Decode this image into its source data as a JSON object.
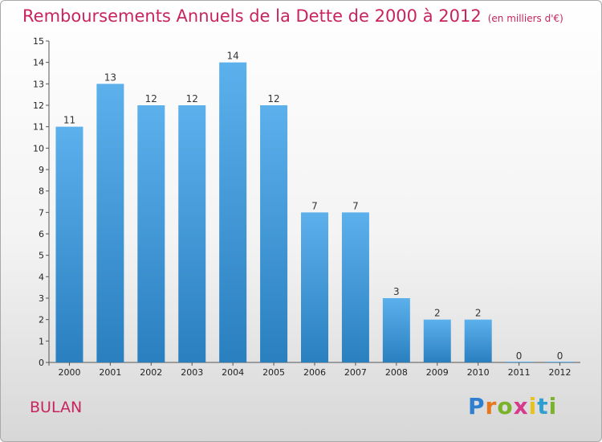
{
  "title": "Remboursements Annuels de la Dette de 2000 à 2012",
  "subtitle": "(en milliers d'€)",
  "location": "BULAN",
  "logo": {
    "text": "Proxiti",
    "letters": [
      {
        "ch": "P",
        "color": "#2f7fd0"
      },
      {
        "ch": "r",
        "color": "#e8761c"
      },
      {
        "ch": "o",
        "color": "#7bb22c"
      },
      {
        "ch": "x",
        "color": "#d63a8d"
      },
      {
        "ch": "i",
        "color": "#e8c21c"
      },
      {
        "ch": "t",
        "color": "#2f9fd0"
      },
      {
        "ch": "i",
        "color": "#7bb22c"
      }
    ]
  },
  "colors": {
    "title": "#c8245f",
    "bar_top": "#5cb0ec",
    "bar_bottom": "#2a7fbf"
  },
  "chart_data": {
    "type": "bar",
    "categories": [
      "2000",
      "2001",
      "2002",
      "2003",
      "2004",
      "2005",
      "2006",
      "2007",
      "2008",
      "2009",
      "2010",
      "2011",
      "2012"
    ],
    "values": [
      11,
      13,
      12,
      12,
      14,
      12,
      7,
      7,
      3,
      2,
      2,
      0,
      0
    ],
    "data_labels": [
      "11",
      "13",
      "12",
      "12",
      "14",
      "12",
      "7",
      "7",
      "3",
      "2",
      "2",
      "0",
      "0"
    ],
    "y_ticks": [
      "0",
      "1",
      "2",
      "3",
      "4",
      "5",
      "6",
      "7",
      "8",
      "9",
      "10",
      "11",
      "12",
      "13",
      "14",
      "15"
    ],
    "ylim": [
      0,
      15
    ],
    "grid": false,
    "legend": "none"
  }
}
